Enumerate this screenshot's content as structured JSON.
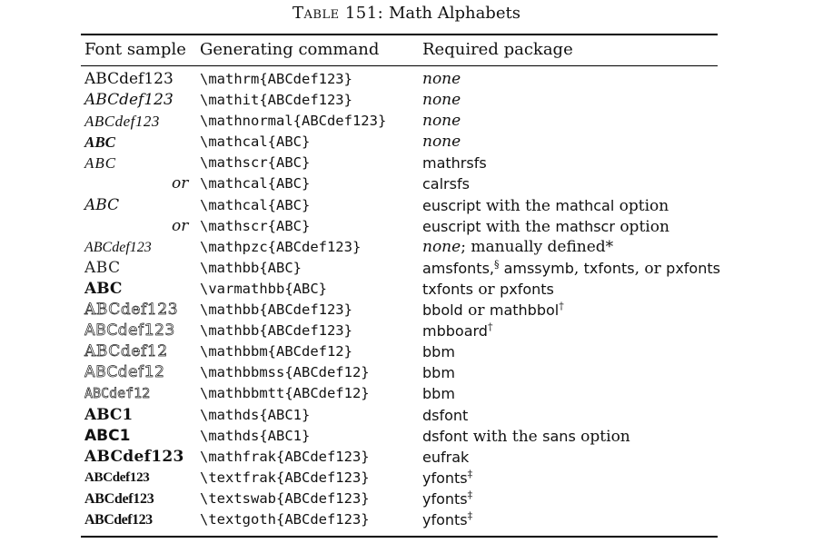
{
  "caption": {
    "label": "Table 151:",
    "title": "Math Alphabets"
  },
  "header": {
    "col_sample": "Font sample",
    "col_command": "Generating command",
    "col_package": "Required package"
  },
  "rows": [
    {
      "sample": "ABCdef123",
      "command": "\\mathrm{ABCdef123}",
      "package": [
        {
          "text": "none",
          "style": "it"
        }
      ]
    },
    {
      "sample": "ABCdef123",
      "command": "\\mathit{ABCdef123}",
      "package": [
        {
          "text": "none",
          "style": "it"
        }
      ]
    },
    {
      "sample": "ABCdef123",
      "command": "\\mathnormal{ABCdef123}",
      "package": [
        {
          "text": "none",
          "style": "it"
        }
      ]
    },
    {
      "sample": "ABC",
      "command": "\\mathcal{ABC}",
      "package": [
        {
          "text": "none",
          "style": "it"
        }
      ]
    },
    {
      "sample": "ABC",
      "command": "\\mathscr{ABC}",
      "package": [
        {
          "text": "mathrsfs",
          "style": "sf"
        }
      ]
    },
    {
      "sample": "or",
      "command": "\\mathcal{ABC}",
      "package": [
        {
          "text": "calrsfs",
          "style": "sf"
        }
      ]
    },
    {
      "sample": "ABC",
      "command": "\\mathcal{ABC}",
      "package": [
        {
          "text": "euscript",
          "style": "sf"
        },
        {
          "text": " with the ",
          "style": "rm"
        },
        {
          "text": "mathcal",
          "style": "sf"
        },
        {
          "text": " option",
          "style": "rm"
        }
      ]
    },
    {
      "sample": "or",
      "command": "\\mathscr{ABC}",
      "package": [
        {
          "text": "euscript",
          "style": "sf"
        },
        {
          "text": " with the ",
          "style": "rm"
        },
        {
          "text": "mathscr",
          "style": "sf"
        },
        {
          "text": " option",
          "style": "rm"
        }
      ]
    },
    {
      "sample": "ABCdef123",
      "command": "\\mathpzc{ABCdef123}",
      "package": [
        {
          "text": "none",
          "style": "it"
        },
        {
          "text": "; manually defined*",
          "style": "rm"
        }
      ]
    },
    {
      "sample": "ABC",
      "command": "\\mathbb{ABC}",
      "package": [
        {
          "text": "amsfonts,",
          "style": "sf"
        },
        {
          "text": "§",
          "style": "sup"
        },
        {
          "text": " amssymb",
          "style": "sf"
        },
        {
          "text": ", ",
          "style": "rm"
        },
        {
          "text": "txfonts",
          "style": "sf"
        },
        {
          "text": ", or ",
          "style": "rm"
        },
        {
          "text": "pxfonts",
          "style": "sf"
        }
      ]
    },
    {
      "sample": "ABC",
      "command": "\\varmathbb{ABC}",
      "package": [
        {
          "text": "txfonts",
          "style": "sf"
        },
        {
          "text": " or ",
          "style": "rm"
        },
        {
          "text": "pxfonts",
          "style": "sf"
        }
      ]
    },
    {
      "sample": "ABCdef123",
      "command": "\\mathbb{ABCdef123}",
      "package": [
        {
          "text": "bbold",
          "style": "sf"
        },
        {
          "text": " or ",
          "style": "rm"
        },
        {
          "text": "mathbbol",
          "style": "sf"
        },
        {
          "text": "†",
          "style": "sup"
        }
      ]
    },
    {
      "sample": "ABCdef123",
      "command": "\\mathbb{ABCdef123}",
      "package": [
        {
          "text": "mbboard",
          "style": "sf"
        },
        {
          "text": "†",
          "style": "sup"
        }
      ]
    },
    {
      "sample": "ABCdef12",
      "command": "\\mathbbm{ABCdef12}",
      "package": [
        {
          "text": "bbm",
          "style": "sf"
        }
      ]
    },
    {
      "sample": "ABCdef12",
      "command": "\\mathbbmss{ABCdef12}",
      "package": [
        {
          "text": "bbm",
          "style": "sf"
        }
      ]
    },
    {
      "sample": "ABCdef12",
      "command": "\\mathbbmtt{ABCdef12}",
      "package": [
        {
          "text": "bbm",
          "style": "sf"
        }
      ]
    },
    {
      "sample": "ABC1",
      "command": "\\mathds{ABC1}",
      "package": [
        {
          "text": "dsfont",
          "style": "sf"
        }
      ]
    },
    {
      "sample": "ABC1",
      "command": "\\mathds{ABC1}",
      "package": [
        {
          "text": "dsfont",
          "style": "sf"
        },
        {
          "text": " with the ",
          "style": "rm"
        },
        {
          "text": "sans",
          "style": "sf"
        },
        {
          "text": " option",
          "style": "rm"
        }
      ]
    },
    {
      "sample": "ABCdef123",
      "command": "\\mathfrak{ABCdef123}",
      "package": [
        {
          "text": "eufrak",
          "style": "sf"
        }
      ]
    },
    {
      "sample": "ABCdef123",
      "command": "\\textfrak{ABCdef123}",
      "package": [
        {
          "text": "yfonts",
          "style": "sf"
        },
        {
          "text": "‡",
          "style": "sup"
        }
      ]
    },
    {
      "sample": "ABCdef123",
      "command": "\\textswab{ABCdef123}",
      "package": [
        {
          "text": "yfonts",
          "style": "sf"
        },
        {
          "text": "‡",
          "style": "sup"
        }
      ]
    },
    {
      "sample": "ABCdef123",
      "command": "\\textgoth{ABCdef123}",
      "package": [
        {
          "text": "yfonts",
          "style": "sf"
        },
        {
          "text": "‡",
          "style": "sup"
        }
      ]
    }
  ]
}
